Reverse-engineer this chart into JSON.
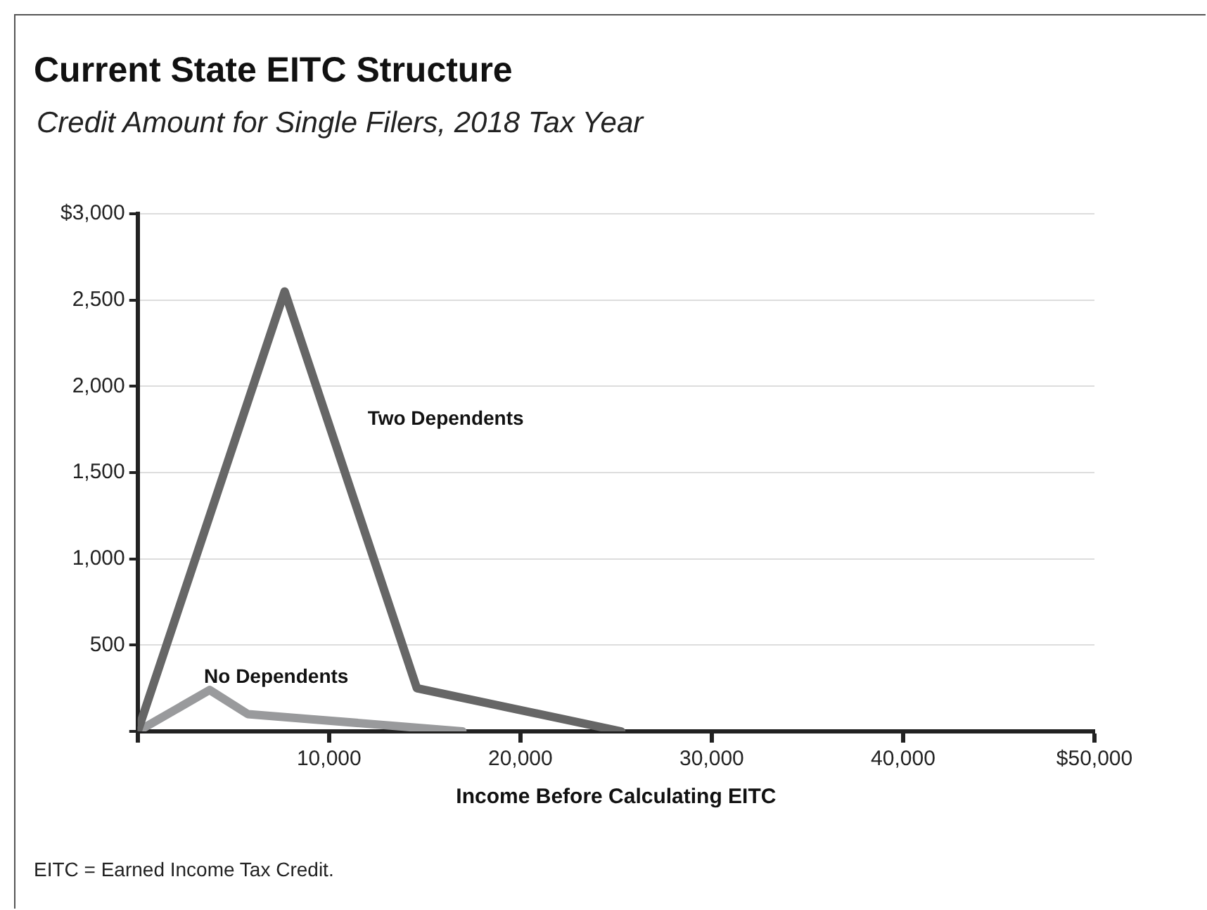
{
  "chart_data": {
    "type": "line",
    "title": "Current State EITC Structure",
    "subtitle": "Credit Amount for Single Filers, 2018 Tax Year",
    "xlabel": "Income Before Calculating EITC",
    "series": [
      {
        "name": "Two Dependents",
        "color": "#666666",
        "x": [
          0,
          7680,
          14590,
          25270
        ],
        "values": [
          0,
          2550,
          250,
          0
        ]
      },
      {
        "name": "No Dependents",
        "color": "#999a9c",
        "x": [
          0,
          3760,
          5760,
          16970
        ],
        "values": [
          0,
          240,
          100,
          0
        ]
      }
    ],
    "xlim": [
      0,
      50000
    ],
    "xticks": [
      {
        "value": 0,
        "label": null
      },
      {
        "value": 10000,
        "label": "10,000"
      },
      {
        "value": 20000,
        "label": "20,000"
      },
      {
        "value": 30000,
        "label": "30,000"
      },
      {
        "value": 40000,
        "label": "40,000"
      },
      {
        "value": 50000,
        "label": "$50,000"
      }
    ],
    "ylim": [
      0,
      3000
    ],
    "yticks": [
      {
        "value": 0,
        "label": null
      },
      {
        "value": 500,
        "label": "500"
      },
      {
        "value": 1000,
        "label": "1,000"
      },
      {
        "value": 1500,
        "label": "1,500"
      },
      {
        "value": 2000,
        "label": "2,000"
      },
      {
        "value": 2500,
        "label": "2,500"
      },
      {
        "value": 3000,
        "label": "$3,000"
      }
    ],
    "grid": "y",
    "legend": false,
    "marker": "none",
    "line_style": "solid",
    "annotations": [
      "EITC = Earned Income Tax Credit."
    ]
  }
}
